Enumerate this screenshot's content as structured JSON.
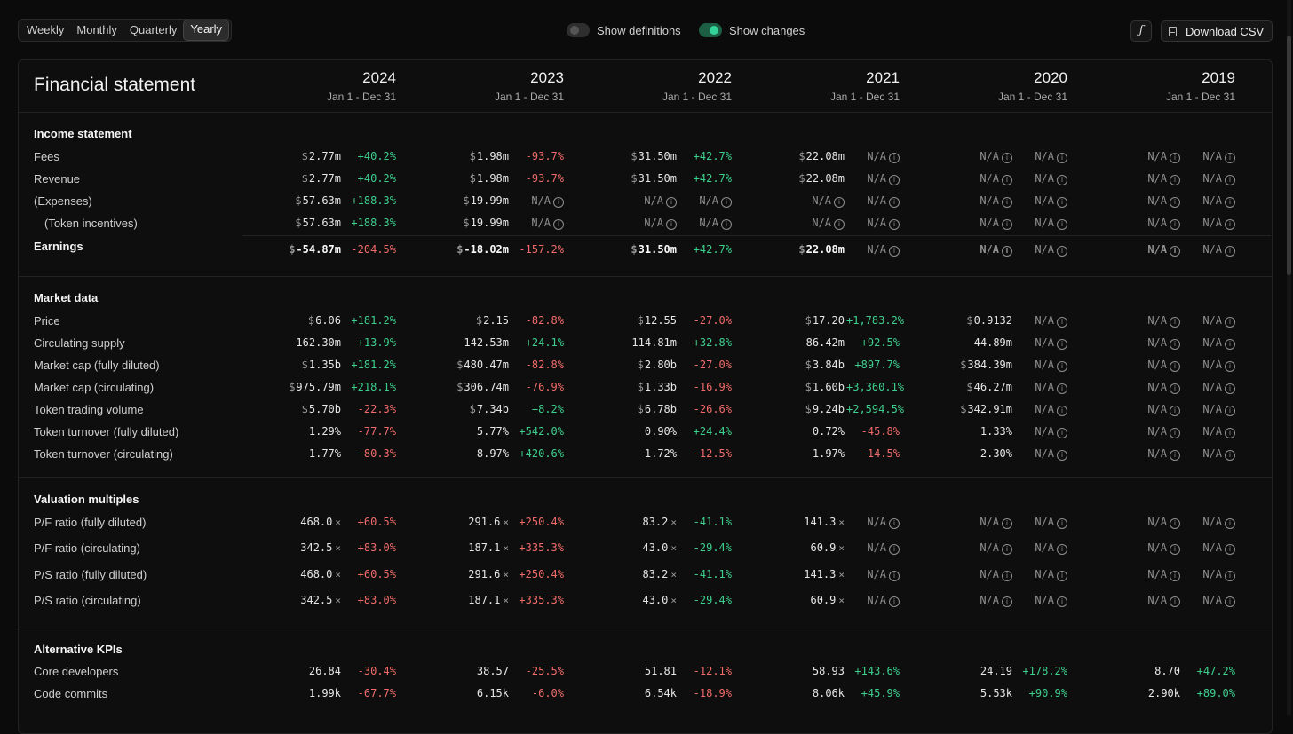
{
  "period_tabs": [
    "Weekly",
    "Monthly",
    "Quarterly",
    "Yearly"
  ],
  "active_period": "Yearly",
  "toggles": {
    "definitions": "Show definitions",
    "changes": "Show changes"
  },
  "formula_icon_label": "ƒ",
  "download_label": "Download CSV",
  "title": "Financial statement",
  "years": [
    {
      "year": "2024",
      "range": "Jan 1 - Dec 31"
    },
    {
      "year": "2023",
      "range": "Jan 1 - Dec 31"
    },
    {
      "year": "2022",
      "range": "Jan 1 - Dec 31"
    },
    {
      "year": "2021",
      "range": "Jan 1 - Dec 31"
    },
    {
      "year": "2020",
      "range": "Jan 1 - Dec 31"
    },
    {
      "year": "2019",
      "range": "Jan 1 - Dec 31"
    }
  ],
  "colors": {
    "positive": "#3ecf8e",
    "negative": "#f26b6b",
    "na": "#8f8f8f"
  },
  "sections": [
    {
      "title": "Income statement",
      "rows": [
        {
          "label": "Fees",
          "cells": [
            {
              "v": "2.77m",
              "dol": true,
              "ch": "+40.2%",
              "s": "up"
            },
            {
              "v": "1.98m",
              "dol": true,
              "ch": "-93.7%",
              "s": "dn"
            },
            {
              "v": "31.50m",
              "dol": true,
              "ch": "+42.7%",
              "s": "up"
            },
            {
              "v": "22.08m",
              "dol": true,
              "ch": "N/A",
              "s": "na"
            },
            {
              "v": "N/A",
              "ch": "N/A",
              "s": "na"
            },
            {
              "v": "N/A",
              "ch": "N/A",
              "s": "na"
            }
          ]
        },
        {
          "label": "Revenue",
          "cells": [
            {
              "v": "2.77m",
              "dol": true,
              "ch": "+40.2%",
              "s": "up"
            },
            {
              "v": "1.98m",
              "dol": true,
              "ch": "-93.7%",
              "s": "dn"
            },
            {
              "v": "31.50m",
              "dol": true,
              "ch": "+42.7%",
              "s": "up"
            },
            {
              "v": "22.08m",
              "dol": true,
              "ch": "N/A",
              "s": "na"
            },
            {
              "v": "N/A",
              "ch": "N/A",
              "s": "na"
            },
            {
              "v": "N/A",
              "ch": "N/A",
              "s": "na"
            }
          ]
        },
        {
          "label": "(Expenses)",
          "cells": [
            {
              "v": "57.63m",
              "dol": true,
              "ch": "+188.3%",
              "s": "up"
            },
            {
              "v": "19.99m",
              "dol": true,
              "ch": "N/A",
              "s": "na"
            },
            {
              "v": "N/A",
              "ch": "N/A",
              "s": "na"
            },
            {
              "v": "N/A",
              "ch": "N/A",
              "s": "na"
            },
            {
              "v": "N/A",
              "ch": "N/A",
              "s": "na"
            },
            {
              "v": "N/A",
              "ch": "N/A",
              "s": "na"
            }
          ]
        },
        {
          "label": "(Token incentives)",
          "indent": true,
          "cells": [
            {
              "v": "57.63m",
              "dol": true,
              "ch": "+188.3%",
              "s": "up"
            },
            {
              "v": "19.99m",
              "dol": true,
              "ch": "N/A",
              "s": "na"
            },
            {
              "v": "N/A",
              "ch": "N/A",
              "s": "na"
            },
            {
              "v": "N/A",
              "ch": "N/A",
              "s": "na"
            },
            {
              "v": "N/A",
              "ch": "N/A",
              "s": "na"
            },
            {
              "v": "N/A",
              "ch": "N/A",
              "s": "na"
            }
          ]
        },
        {
          "label": "Earnings",
          "bold": true,
          "cells": [
            {
              "v": "-54.87m",
              "dol": true,
              "ch": "-204.5%",
              "s": "dn"
            },
            {
              "v": "-18.02m",
              "dol": true,
              "ch": "-157.2%",
              "s": "dn"
            },
            {
              "v": "31.50m",
              "dol": true,
              "ch": "+42.7%",
              "s": "up"
            },
            {
              "v": "22.08m",
              "dol": true,
              "ch": "N/A",
              "s": "na"
            },
            {
              "v": "N/A",
              "ch": "N/A",
              "s": "na"
            },
            {
              "v": "N/A",
              "ch": "N/A",
              "s": "na"
            }
          ]
        }
      ]
    },
    {
      "title": "Market data",
      "rows": [
        {
          "label": "Price",
          "cells": [
            {
              "v": "6.06",
              "dol": true,
              "ch": "+181.2%",
              "s": "up"
            },
            {
              "v": "2.15",
              "dol": true,
              "ch": "-82.8%",
              "s": "dn"
            },
            {
              "v": "12.55",
              "dol": true,
              "ch": "-27.0%",
              "s": "dn"
            },
            {
              "v": "17.20",
              "dol": true,
              "ch": "+1,783.2%",
              "s": "up"
            },
            {
              "v": "0.9132",
              "dol": true,
              "ch": "N/A",
              "s": "na"
            },
            {
              "v": "N/A",
              "ch": "N/A",
              "s": "na"
            }
          ]
        },
        {
          "label": "Circulating supply",
          "cells": [
            {
              "v": "162.30m",
              "ch": "+13.9%",
              "s": "up"
            },
            {
              "v": "142.53m",
              "ch": "+24.1%",
              "s": "up"
            },
            {
              "v": "114.81m",
              "ch": "+32.8%",
              "s": "up"
            },
            {
              "v": "86.42m",
              "ch": "+92.5%",
              "s": "up"
            },
            {
              "v": "44.89m",
              "ch": "N/A",
              "s": "na"
            },
            {
              "v": "N/A",
              "ch": "N/A",
              "s": "na"
            }
          ]
        },
        {
          "label": "Market cap (fully diluted)",
          "cells": [
            {
              "v": "1.35b",
              "dol": true,
              "ch": "+181.2%",
              "s": "up"
            },
            {
              "v": "480.47m",
              "dol": true,
              "ch": "-82.8%",
              "s": "dn"
            },
            {
              "v": "2.80b",
              "dol": true,
              "ch": "-27.0%",
              "s": "dn"
            },
            {
              "v": "3.84b",
              "dol": true,
              "ch": "+897.7%",
              "s": "up"
            },
            {
              "v": "384.39m",
              "dol": true,
              "ch": "N/A",
              "s": "na"
            },
            {
              "v": "N/A",
              "ch": "N/A",
              "s": "na"
            }
          ]
        },
        {
          "label": "Market cap (circulating)",
          "cells": [
            {
              "v": "975.79m",
              "dol": true,
              "ch": "+218.1%",
              "s": "up"
            },
            {
              "v": "306.74m",
              "dol": true,
              "ch": "-76.9%",
              "s": "dn"
            },
            {
              "v": "1.33b",
              "dol": true,
              "ch": "-16.9%",
              "s": "dn"
            },
            {
              "v": "1.60b",
              "dol": true,
              "ch": "+3,360.1%",
              "s": "up"
            },
            {
              "v": "46.27m",
              "dol": true,
              "ch": "N/A",
              "s": "na"
            },
            {
              "v": "N/A",
              "ch": "N/A",
              "s": "na"
            }
          ]
        },
        {
          "label": "Token trading volume",
          "cells": [
            {
              "v": "5.70b",
              "dol": true,
              "ch": "-22.3%",
              "s": "dn"
            },
            {
              "v": "7.34b",
              "dol": true,
              "ch": "+8.2%",
              "s": "up"
            },
            {
              "v": "6.78b",
              "dol": true,
              "ch": "-26.6%",
              "s": "dn"
            },
            {
              "v": "9.24b",
              "dol": true,
              "ch": "+2,594.5%",
              "s": "up"
            },
            {
              "v": "342.91m",
              "dol": true,
              "ch": "N/A",
              "s": "na"
            },
            {
              "v": "N/A",
              "ch": "N/A",
              "s": "na"
            }
          ]
        },
        {
          "label": "Token turnover (fully diluted)",
          "cells": [
            {
              "v": "1.29%",
              "ch": "-77.7%",
              "s": "dn"
            },
            {
              "v": "5.77%",
              "ch": "+542.0%",
              "s": "up"
            },
            {
              "v": "0.90%",
              "ch": "+24.4%",
              "s": "up"
            },
            {
              "v": "0.72%",
              "ch": "-45.8%",
              "s": "dn"
            },
            {
              "v": "1.33%",
              "ch": "N/A",
              "s": "na"
            },
            {
              "v": "N/A",
              "ch": "N/A",
              "s": "na"
            }
          ]
        },
        {
          "label": "Token turnover (circulating)",
          "cells": [
            {
              "v": "1.77%",
              "ch": "-80.3%",
              "s": "dn"
            },
            {
              "v": "8.97%",
              "ch": "+420.6%",
              "s": "up"
            },
            {
              "v": "1.72%",
              "ch": "-12.5%",
              "s": "dn"
            },
            {
              "v": "1.97%",
              "ch": "-14.5%",
              "s": "dn"
            },
            {
              "v": "2.30%",
              "ch": "N/A",
              "s": "na"
            },
            {
              "v": "N/A",
              "ch": "N/A",
              "s": "na"
            }
          ]
        }
      ]
    },
    {
      "title": "Valuation multiples",
      "rows": [
        {
          "label": "P/F ratio (fully diluted)",
          "cells": [
            {
              "v": "468.0",
              "x": true,
              "ch": "+60.5%",
              "s": "dn"
            },
            {
              "v": "291.6",
              "x": true,
              "ch": "+250.4%",
              "s": "dn"
            },
            {
              "v": "83.2",
              "x": true,
              "ch": "-41.1%",
              "s": "up"
            },
            {
              "v": "141.3",
              "x": true,
              "ch": "N/A",
              "s": "na"
            },
            {
              "v": "N/A",
              "ch": "N/A",
              "s": "na"
            },
            {
              "v": "N/A",
              "ch": "N/A",
              "s": "na"
            }
          ]
        },
        {
          "label": "P/F ratio (circulating)",
          "cells": [
            {
              "v": "342.5",
              "x": true,
              "ch": "+83.0%",
              "s": "dn"
            },
            {
              "v": "187.1",
              "x": true,
              "ch": "+335.3%",
              "s": "dn"
            },
            {
              "v": "43.0",
              "x": true,
              "ch": "-29.4%",
              "s": "up"
            },
            {
              "v": "60.9",
              "x": true,
              "ch": "N/A",
              "s": "na"
            },
            {
              "v": "N/A",
              "ch": "N/A",
              "s": "na"
            },
            {
              "v": "N/A",
              "ch": "N/A",
              "s": "na"
            }
          ]
        },
        {
          "label": "P/S ratio (fully diluted)",
          "cells": [
            {
              "v": "468.0",
              "x": true,
              "ch": "+60.5%",
              "s": "dn"
            },
            {
              "v": "291.6",
              "x": true,
              "ch": "+250.4%",
              "s": "dn"
            },
            {
              "v": "83.2",
              "x": true,
              "ch": "-41.1%",
              "s": "up"
            },
            {
              "v": "141.3",
              "x": true,
              "ch": "N/A",
              "s": "na"
            },
            {
              "v": "N/A",
              "ch": "N/A",
              "s": "na"
            },
            {
              "v": "N/A",
              "ch": "N/A",
              "s": "na"
            }
          ]
        },
        {
          "label": "P/S ratio (circulating)",
          "cells": [
            {
              "v": "342.5",
              "x": true,
              "ch": "+83.0%",
              "s": "dn"
            },
            {
              "v": "187.1",
              "x": true,
              "ch": "+335.3%",
              "s": "dn"
            },
            {
              "v": "43.0",
              "x": true,
              "ch": "-29.4%",
              "s": "up"
            },
            {
              "v": "60.9",
              "x": true,
              "ch": "N/A",
              "s": "na"
            },
            {
              "v": "N/A",
              "ch": "N/A",
              "s": "na"
            },
            {
              "v": "N/A",
              "ch": "N/A",
              "s": "na"
            }
          ]
        }
      ]
    },
    {
      "title": "Alternative KPIs",
      "rows": [
        {
          "label": "Core developers",
          "cells": [
            {
              "v": "26.84",
              "ch": "-30.4%",
              "s": "dn"
            },
            {
              "v": "38.57",
              "ch": "-25.5%",
              "s": "dn"
            },
            {
              "v": "51.81",
              "ch": "-12.1%",
              "s": "dn"
            },
            {
              "v": "58.93",
              "ch": "+143.6%",
              "s": "up"
            },
            {
              "v": "24.19",
              "ch": "+178.2%",
              "s": "up"
            },
            {
              "v": "8.70",
              "ch": "+47.2%",
              "s": "up"
            }
          ]
        },
        {
          "label": "Code commits",
          "cells": [
            {
              "v": "1.99k",
              "ch": "-67.7%",
              "s": "dn"
            },
            {
              "v": "6.15k",
              "ch": "-6.0%",
              "s": "dn"
            },
            {
              "v": "6.54k",
              "ch": "-18.9%",
              "s": "dn"
            },
            {
              "v": "8.06k",
              "ch": "+45.9%",
              "s": "up"
            },
            {
              "v": "5.53k",
              "ch": "+90.9%",
              "s": "up"
            },
            {
              "v": "2.90k",
              "ch": "+89.0%",
              "s": "up"
            }
          ]
        }
      ]
    }
  ]
}
